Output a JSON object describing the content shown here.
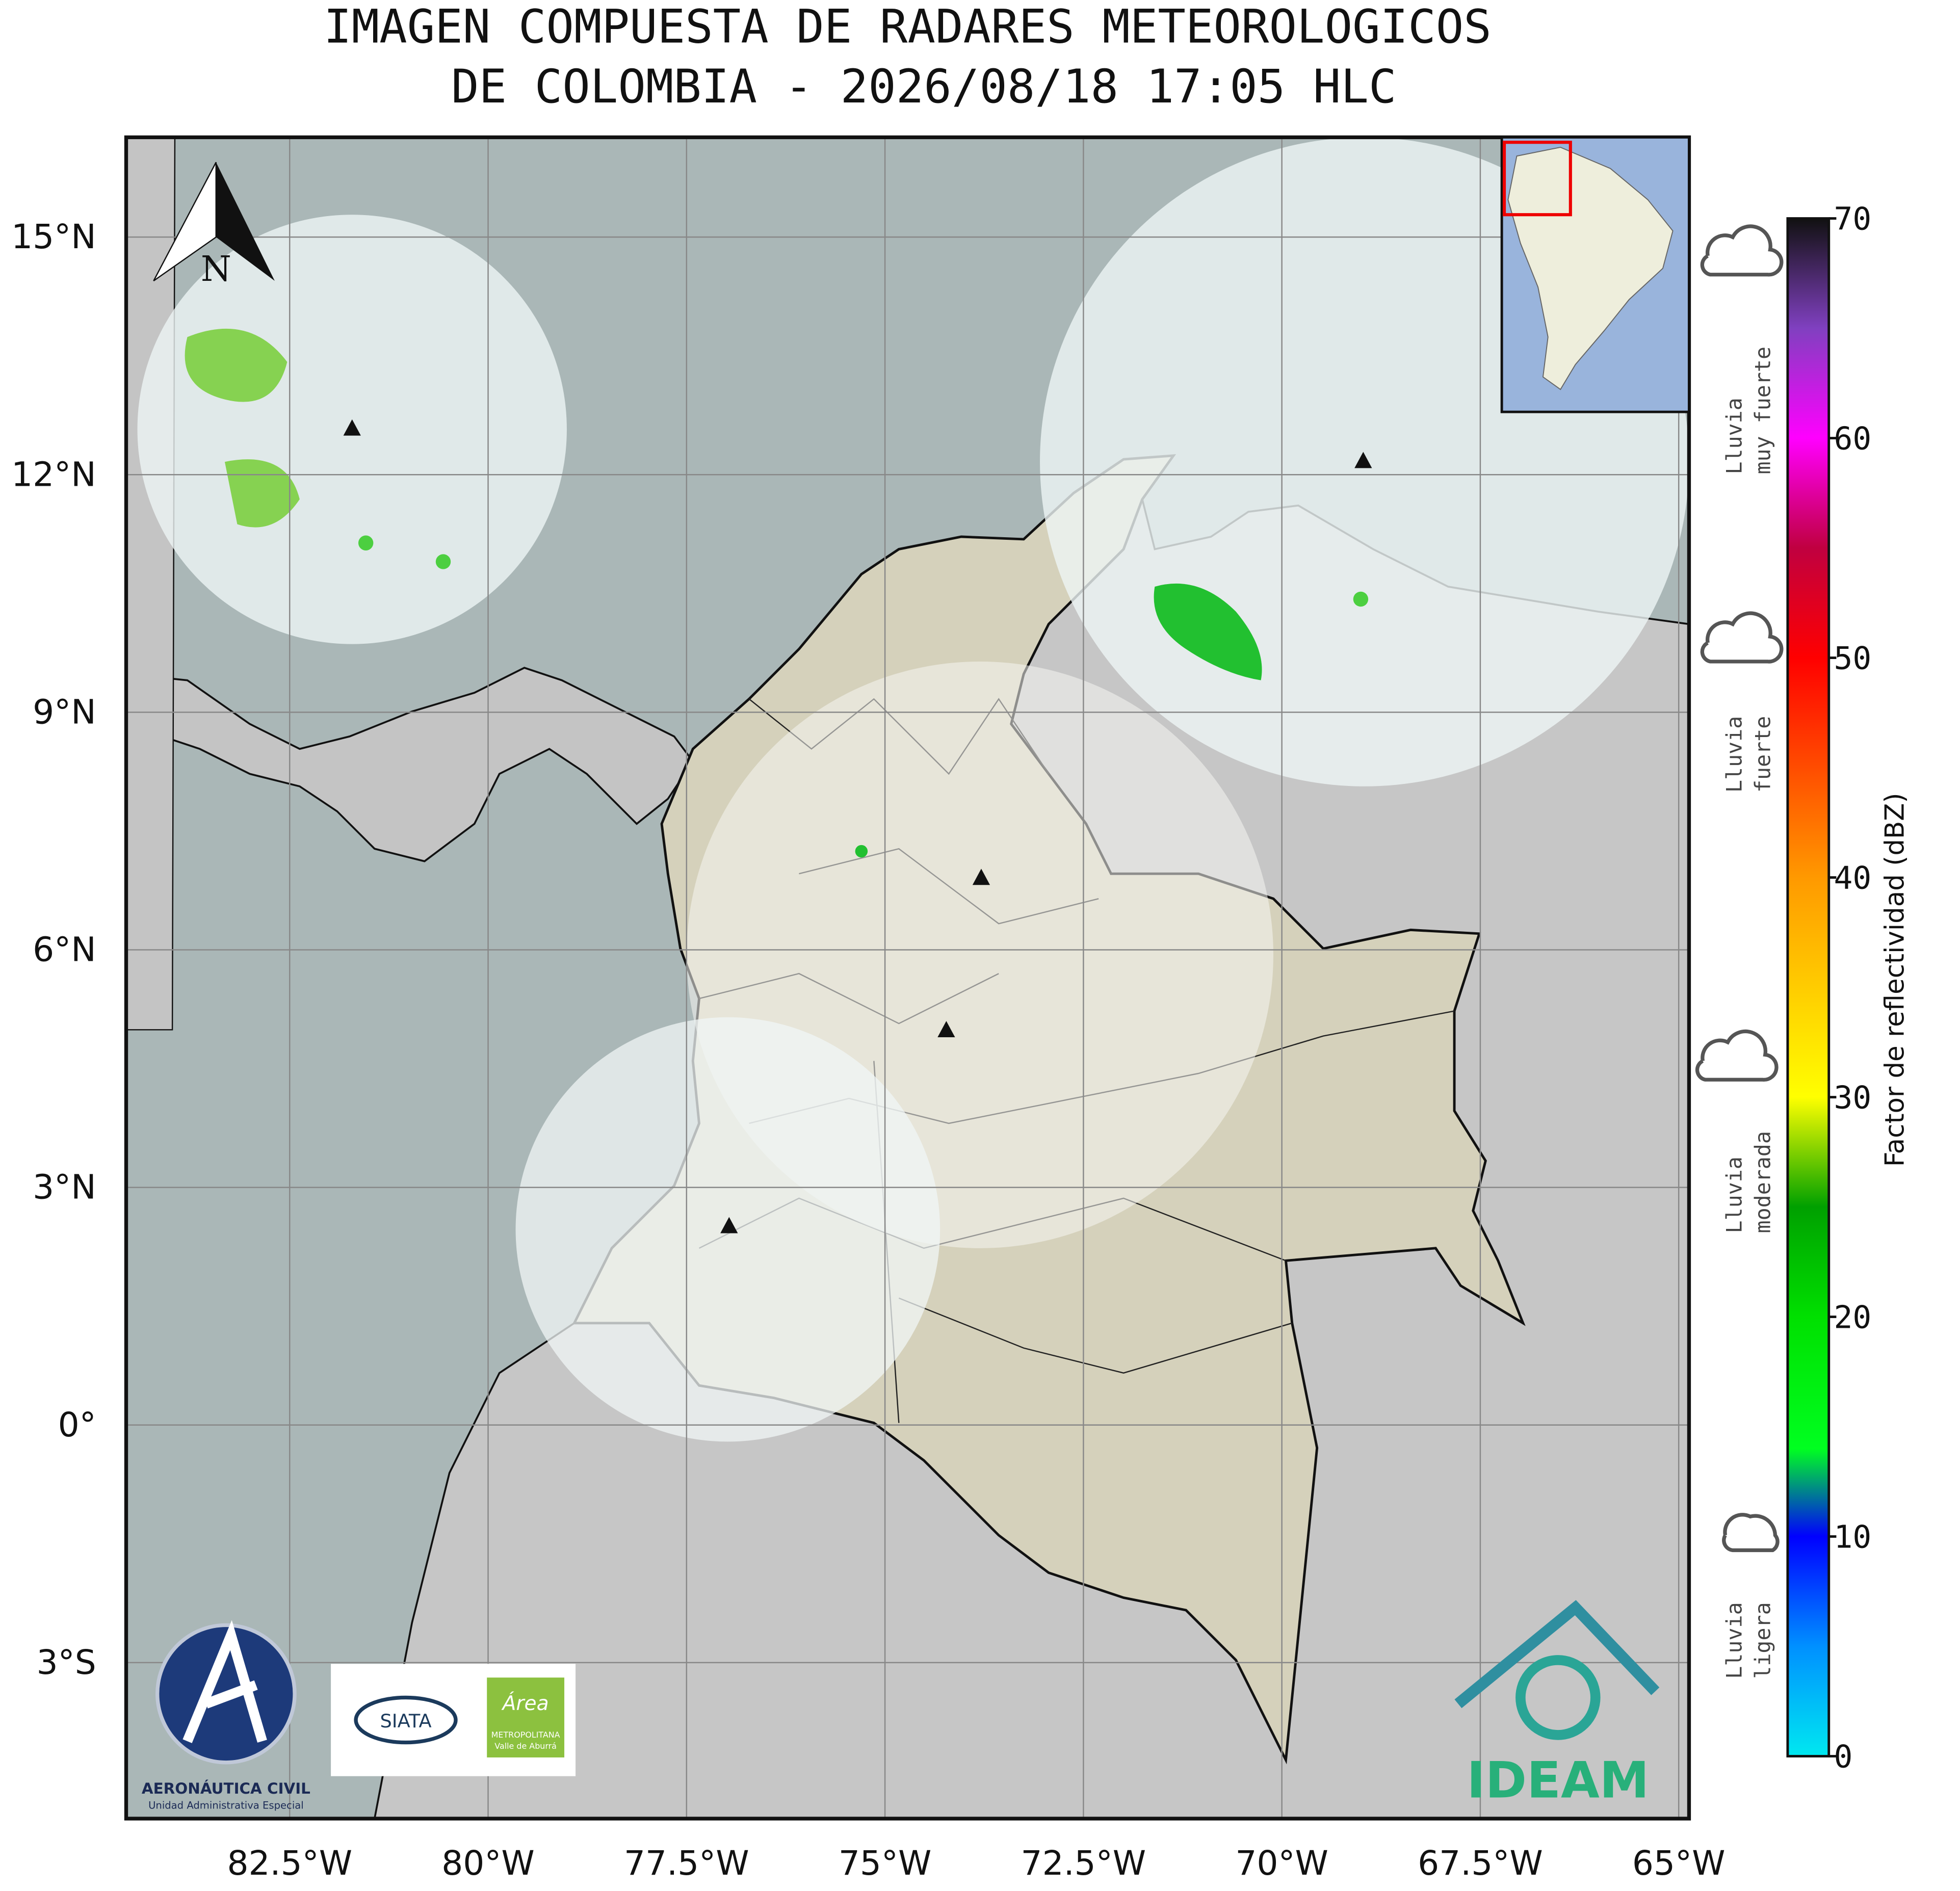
{
  "title_lines": [
    "IMAGEN COMPUESTA DE RADARES METEOROLOGICOS",
    "DE COLOMBIA - 2026/08/18 17:05 HLC"
  ],
  "map": {
    "xlim": [
      -84.56,
      -64.87
    ],
    "ylim": [
      -4.97,
      16.26
    ],
    "lon_ticks": [
      {
        "value": -82.5,
        "label": "82.5°W"
      },
      {
        "value": -80,
        "label": "80°W"
      },
      {
        "value": -77.5,
        "label": "77.5°W"
      },
      {
        "value": -75,
        "label": "75°W"
      },
      {
        "value": -72.5,
        "label": "72.5°W"
      },
      {
        "value": -70,
        "label": "70°W"
      },
      {
        "value": -67.5,
        "label": "67.5°W"
      },
      {
        "value": -65,
        "label": "65°W"
      }
    ],
    "lat_ticks": [
      {
        "value": 15,
        "label": "15°N"
      },
      {
        "value": 12,
        "label": "12°N"
      },
      {
        "value": 9,
        "label": "9°N"
      },
      {
        "value": 6,
        "label": "6°N"
      },
      {
        "value": 3,
        "label": "3°N"
      },
      {
        "value": 0,
        "label": "0°"
      },
      {
        "value": -3,
        "label": "3°S"
      }
    ],
    "grid": true,
    "north_label": "N"
  },
  "colorbar": {
    "label": "Factor de reflectividad (dBZ)",
    "lim": [
      0,
      70
    ],
    "ticks": [
      0,
      10,
      20,
      30,
      40,
      50,
      60,
      70
    ],
    "colors": [
      {
        "value": 0,
        "color": "#00e8f0"
      },
      {
        "value": 5,
        "color": "#0090ff"
      },
      {
        "value": 10,
        "color": "#0000ff"
      },
      {
        "value": 14,
        "color": "#00ff20"
      },
      {
        "value": 20,
        "color": "#00e000"
      },
      {
        "value": 25,
        "color": "#00a000"
      },
      {
        "value": 30,
        "color": "#ffff00"
      },
      {
        "value": 40,
        "color": "#ff9900"
      },
      {
        "value": 50,
        "color": "#ff0000"
      },
      {
        "value": 55,
        "color": "#c00040"
      },
      {
        "value": 60,
        "color": "#ff00ff"
      },
      {
        "value": 65,
        "color": "#8040c0"
      },
      {
        "value": 70,
        "color": "#111111"
      }
    ]
  },
  "intensity_labels": [
    [
      "Lluvia",
      "muy fuerte"
    ],
    [
      "Lluvia",
      "fuerte"
    ],
    [
      "Lluvia",
      "moderada"
    ],
    [
      "Lluvia",
      "ligera"
    ]
  ],
  "logos": {
    "aerocivil": [
      "AERONÁUTICA CIVIL",
      "Unidad Administrativa Especial"
    ],
    "siata": "SIATA",
    "area": [
      "Área",
      "METROPOLITANA",
      "Valle de Aburrá"
    ],
    "ideam": "IDEAM"
  }
}
